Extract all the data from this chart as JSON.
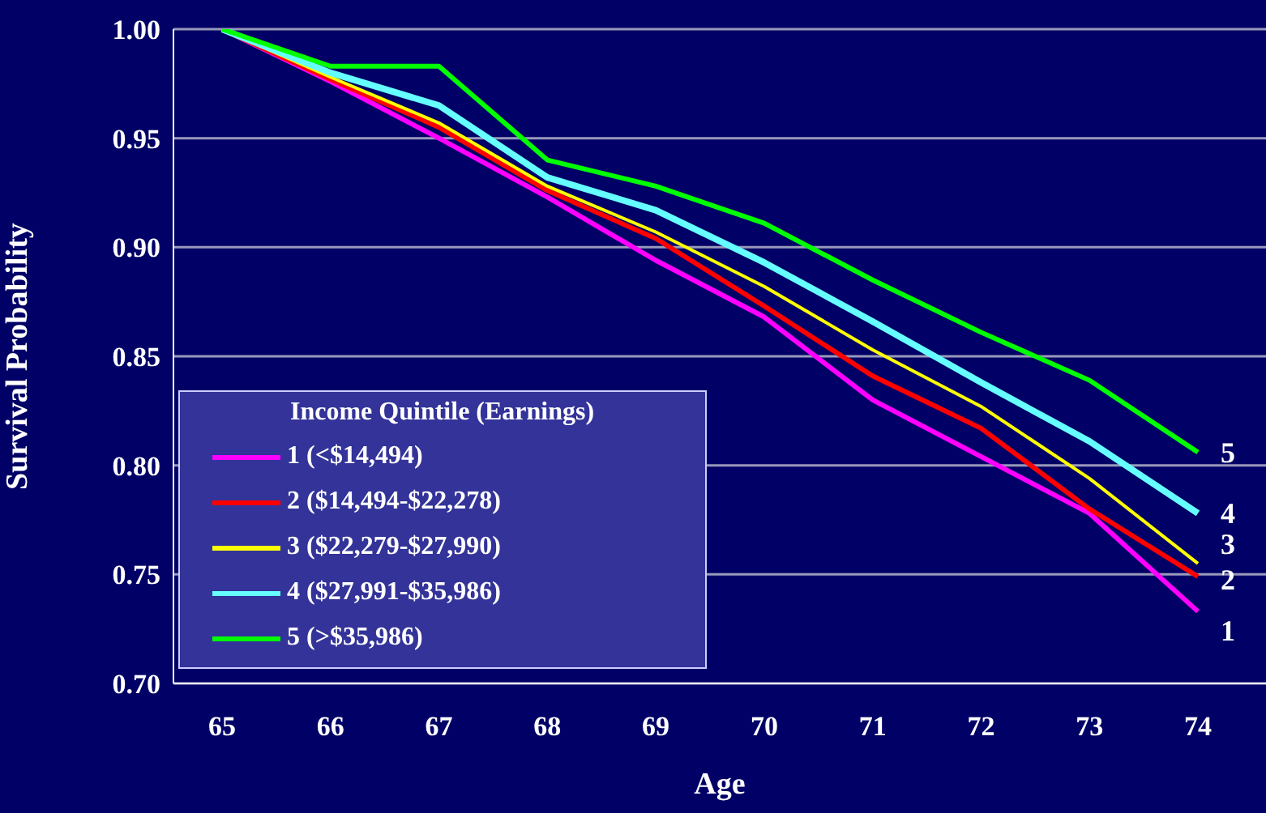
{
  "chart_data": {
    "type": "line",
    "xlabel": "Age",
    "ylabel": "Survival Probability",
    "legend_title": "Income Quintile (Earnings)",
    "categories": [
      "65",
      "66",
      "67",
      "68",
      "69",
      "70",
      "71",
      "72",
      "73",
      "74"
    ],
    "series": [
      {
        "name": "1 (<$14,494)",
        "color": "#ff00ff",
        "values": [
          1.0,
          0.976,
          0.95,
          0.923,
          0.894,
          0.868,
          0.83,
          0.804,
          0.778,
          0.733
        ]
      },
      {
        "name": "2 ($14,494-$22,278)",
        "color": "#ff0000",
        "values": [
          1.0,
          0.977,
          0.955,
          0.926,
          0.904,
          0.873,
          0.841,
          0.817,
          0.78,
          0.749
        ]
      },
      {
        "name": "3 ($22,279-$27,990)",
        "color": "#ffff00",
        "values": [
          1.0,
          0.978,
          0.957,
          0.928,
          0.907,
          0.882,
          0.853,
          0.827,
          0.794,
          0.755
        ]
      },
      {
        "name": "4 ($27,991-$35,986)",
        "color": "#66ffff",
        "values": [
          1.0,
          0.98,
          0.965,
          0.932,
          0.917,
          0.893,
          0.866,
          0.838,
          0.811,
          0.778
        ]
      },
      {
        "name": "5 (>$35,986)",
        "color": "#00ff00",
        "values": [
          1.0,
          0.983,
          0.983,
          0.94,
          0.928,
          0.911,
          0.885,
          0.861,
          0.839,
          0.806
        ]
      }
    ],
    "annotations": [
      {
        "text": "1",
        "x": "74",
        "y": 0.733
      },
      {
        "text": "2",
        "x": "74",
        "y": 0.749
      },
      {
        "text": "3",
        "x": "74",
        "y": 0.755
      },
      {
        "text": "4",
        "x": "74",
        "y": 0.778
      },
      {
        "text": "5",
        "x": "74",
        "y": 0.806
      }
    ],
    "ylim": [
      0.7,
      1.0
    ],
    "yticks": [
      {
        "value": 0.7,
        "label": "0.70"
      },
      {
        "value": 0.75,
        "label": "0.75"
      },
      {
        "value": 0.8,
        "label": "0.80"
      },
      {
        "value": 0.85,
        "label": "0.85"
      },
      {
        "value": 0.9,
        "label": "0.90"
      },
      {
        "value": 0.95,
        "label": "0.95"
      },
      {
        "value": 1.0,
        "label": "1.00"
      }
    ],
    "grid": "y",
    "legend": "bottom left",
    "marker": "none",
    "line_style": "solid"
  }
}
